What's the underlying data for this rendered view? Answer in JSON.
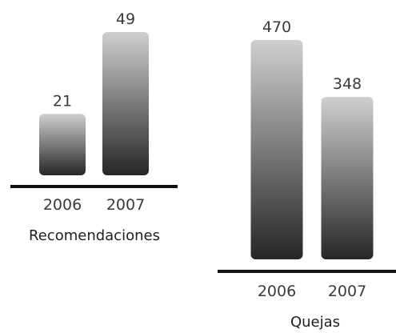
{
  "chart_data": [
    {
      "type": "bar",
      "title": "Recomendaciones",
      "categories": [
        "2006",
        "2007"
      ],
      "values": [
        21,
        49
      ],
      "ylim": [
        0,
        49
      ],
      "grid": false,
      "legend": "none"
    },
    {
      "type": "bar",
      "title": "Quejas",
      "categories": [
        "2006",
        "2007"
      ],
      "values": [
        470,
        348
      ],
      "ylim": [
        0,
        470
      ],
      "grid": false,
      "legend": "none"
    }
  ],
  "colors": {
    "bar_top": "#cfcfcf",
    "bar_bottom": "#262626",
    "axis": "#111111",
    "text": "#3a3a3a"
  }
}
